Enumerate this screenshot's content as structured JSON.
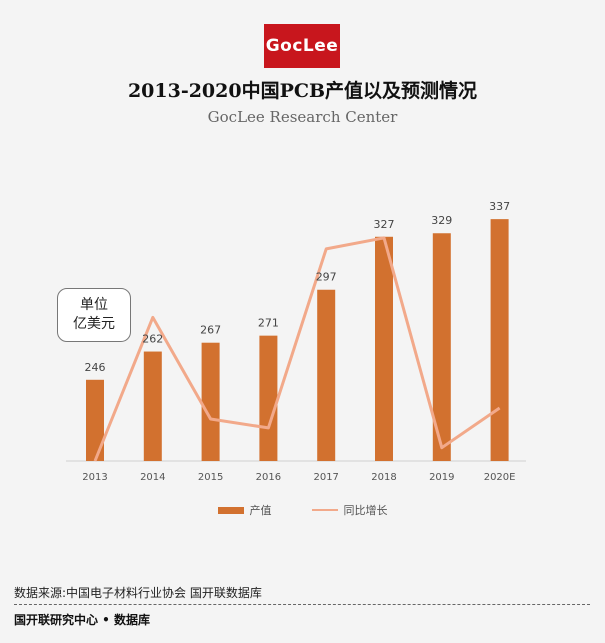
{
  "logo_text": "GocLee",
  "title": "2013-2020中国PCB产值以及预测情况",
  "subtitle": "GocLee Research Center",
  "unit": {
    "line1": "单位",
    "line2": "亿美元"
  },
  "legend": {
    "bar": "产值",
    "line": "同比增长"
  },
  "source": "数据来源:中国电子材料行业协会 国开联数据库",
  "footer": "国开联研究中心 • 数据库",
  "colors": {
    "bar": "#d2712f",
    "line": "#f2a98a",
    "logo_bg": "#c8161d"
  },
  "chart_data": {
    "type": "bar",
    "title": "2013-2020中国PCB产值以及预测情况",
    "categories": [
      "2013",
      "2014",
      "2015",
      "2016",
      "2017",
      "2018",
      "2019",
      "2020E"
    ],
    "series": [
      {
        "name": "产值",
        "type": "bar",
        "values": [
          246,
          262,
          267,
          271,
          297,
          327,
          329,
          337
        ]
      },
      {
        "name": "同比增长",
        "type": "line",
        "values": [
          0.0,
          6.5,
          1.9,
          1.5,
          9.6,
          10.1,
          0.6,
          2.4
        ]
      }
    ],
    "ylabel": "亿美元",
    "bar_ylim": [
      200,
      345
    ],
    "line_ylim": [
      0,
      11
    ]
  }
}
